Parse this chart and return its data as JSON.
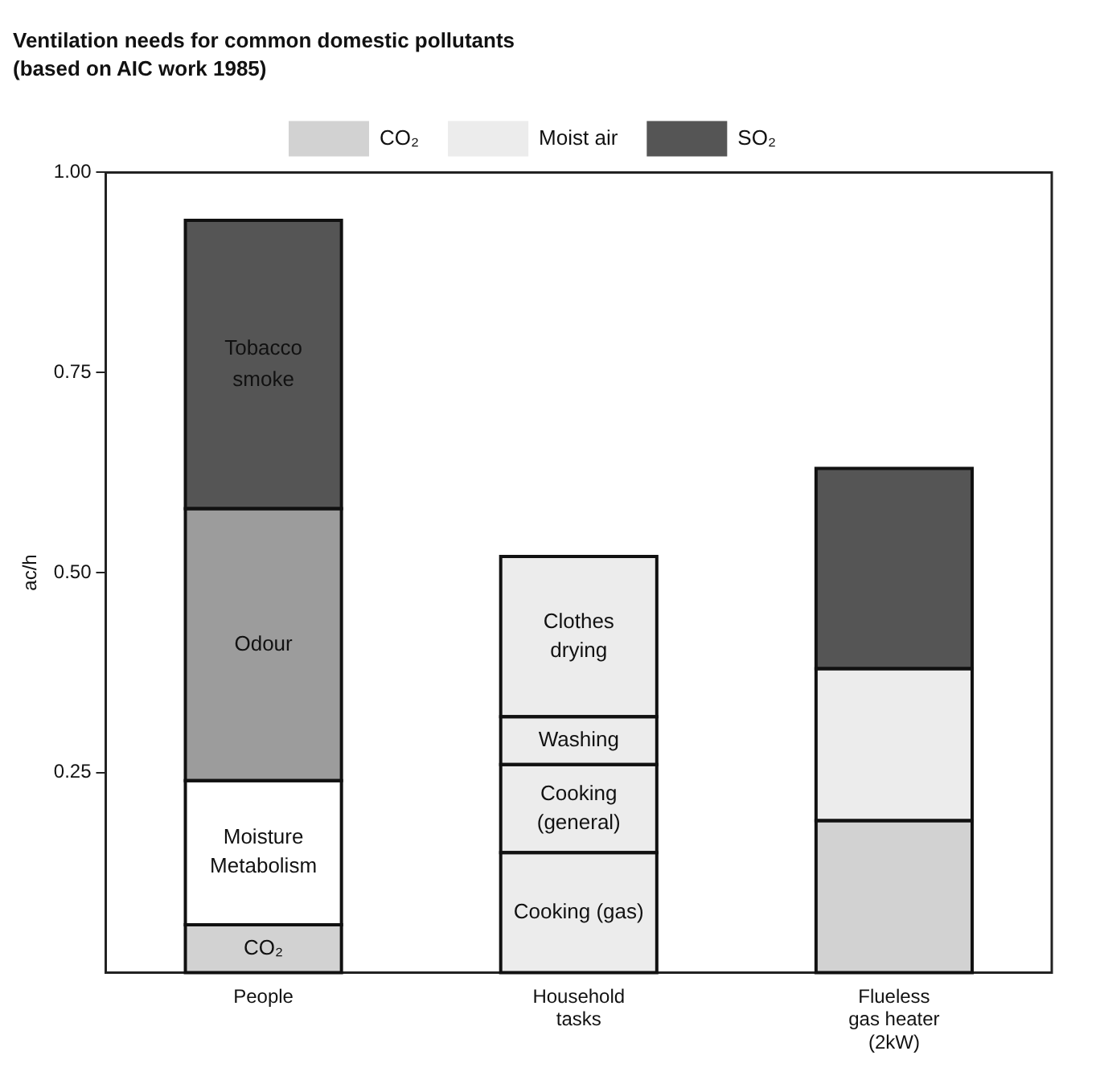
{
  "chart_data": {
    "type": "bar",
    "stacked": true,
    "title": "Ventilation needs for common domestic pollutants",
    "subtitle": "(based on AIC work 1985)",
    "ylabel": "ac/h",
    "categories": [
      "People",
      "Household tasks",
      "Flueless gas heater (2kW)"
    ],
    "series": [
      {
        "name": "CO₂",
        "color": "#d2d2d2",
        "values": [
          0.06,
          null,
          0.19
        ],
        "value_labels": [
          "CO₂",
          null,
          null
        ]
      },
      {
        "name": "Moist air",
        "color": "#ececec",
        "values": [
          null,
          0.15,
          0.19
        ],
        "value_labels": [
          null,
          "Cooking (gas)",
          null
        ]
      },
      {
        "name": "SO₂",
        "color": "#555555",
        "values": [
          null,
          null,
          0.25
        ]
      },
      {
        "color": "#ffffff",
        "values": [
          0.18,
          null,
          null
        ],
        "value_labels": [
          "Moisture Metabolism",
          null,
          null
        ]
      },
      {
        "color": "#ececec",
        "values": [
          null,
          0.11,
          null
        ],
        "value_labels": [
          null,
          "Cooking (general)",
          null
        ]
      },
      {
        "color": "#ececec",
        "values": [
          null,
          0.06,
          null
        ],
        "value_labels": [
          null,
          "Washing",
          null
        ]
      },
      {
        "color": "#ececec",
        "values": [
          null,
          0.2,
          null
        ],
        "value_labels": [
          null,
          "Clothes drying",
          null
        ]
      },
      {
        "color": "#9c9c9c",
        "values": [
          0.34,
          null,
          null
        ],
        "value_labels": [
          "Odour",
          null,
          null
        ]
      },
      {
        "color": "#555555",
        "values": [
          0.36,
          null,
          null
        ],
        "value_labels": [
          "Tobacco smoke",
          null,
          null
        ]
      }
    ],
    "ylim": [
      0,
      1
    ],
    "yticks": [
      {
        "value": 0.25,
        "label": "0.25"
      },
      {
        "value": 0.5,
        "label": "0.50"
      },
      {
        "value": 0.75,
        "label": "0.75"
      },
      {
        "value": 1,
        "label": "1.00"
      }
    ],
    "grid": false,
    "legend": "top"
  }
}
